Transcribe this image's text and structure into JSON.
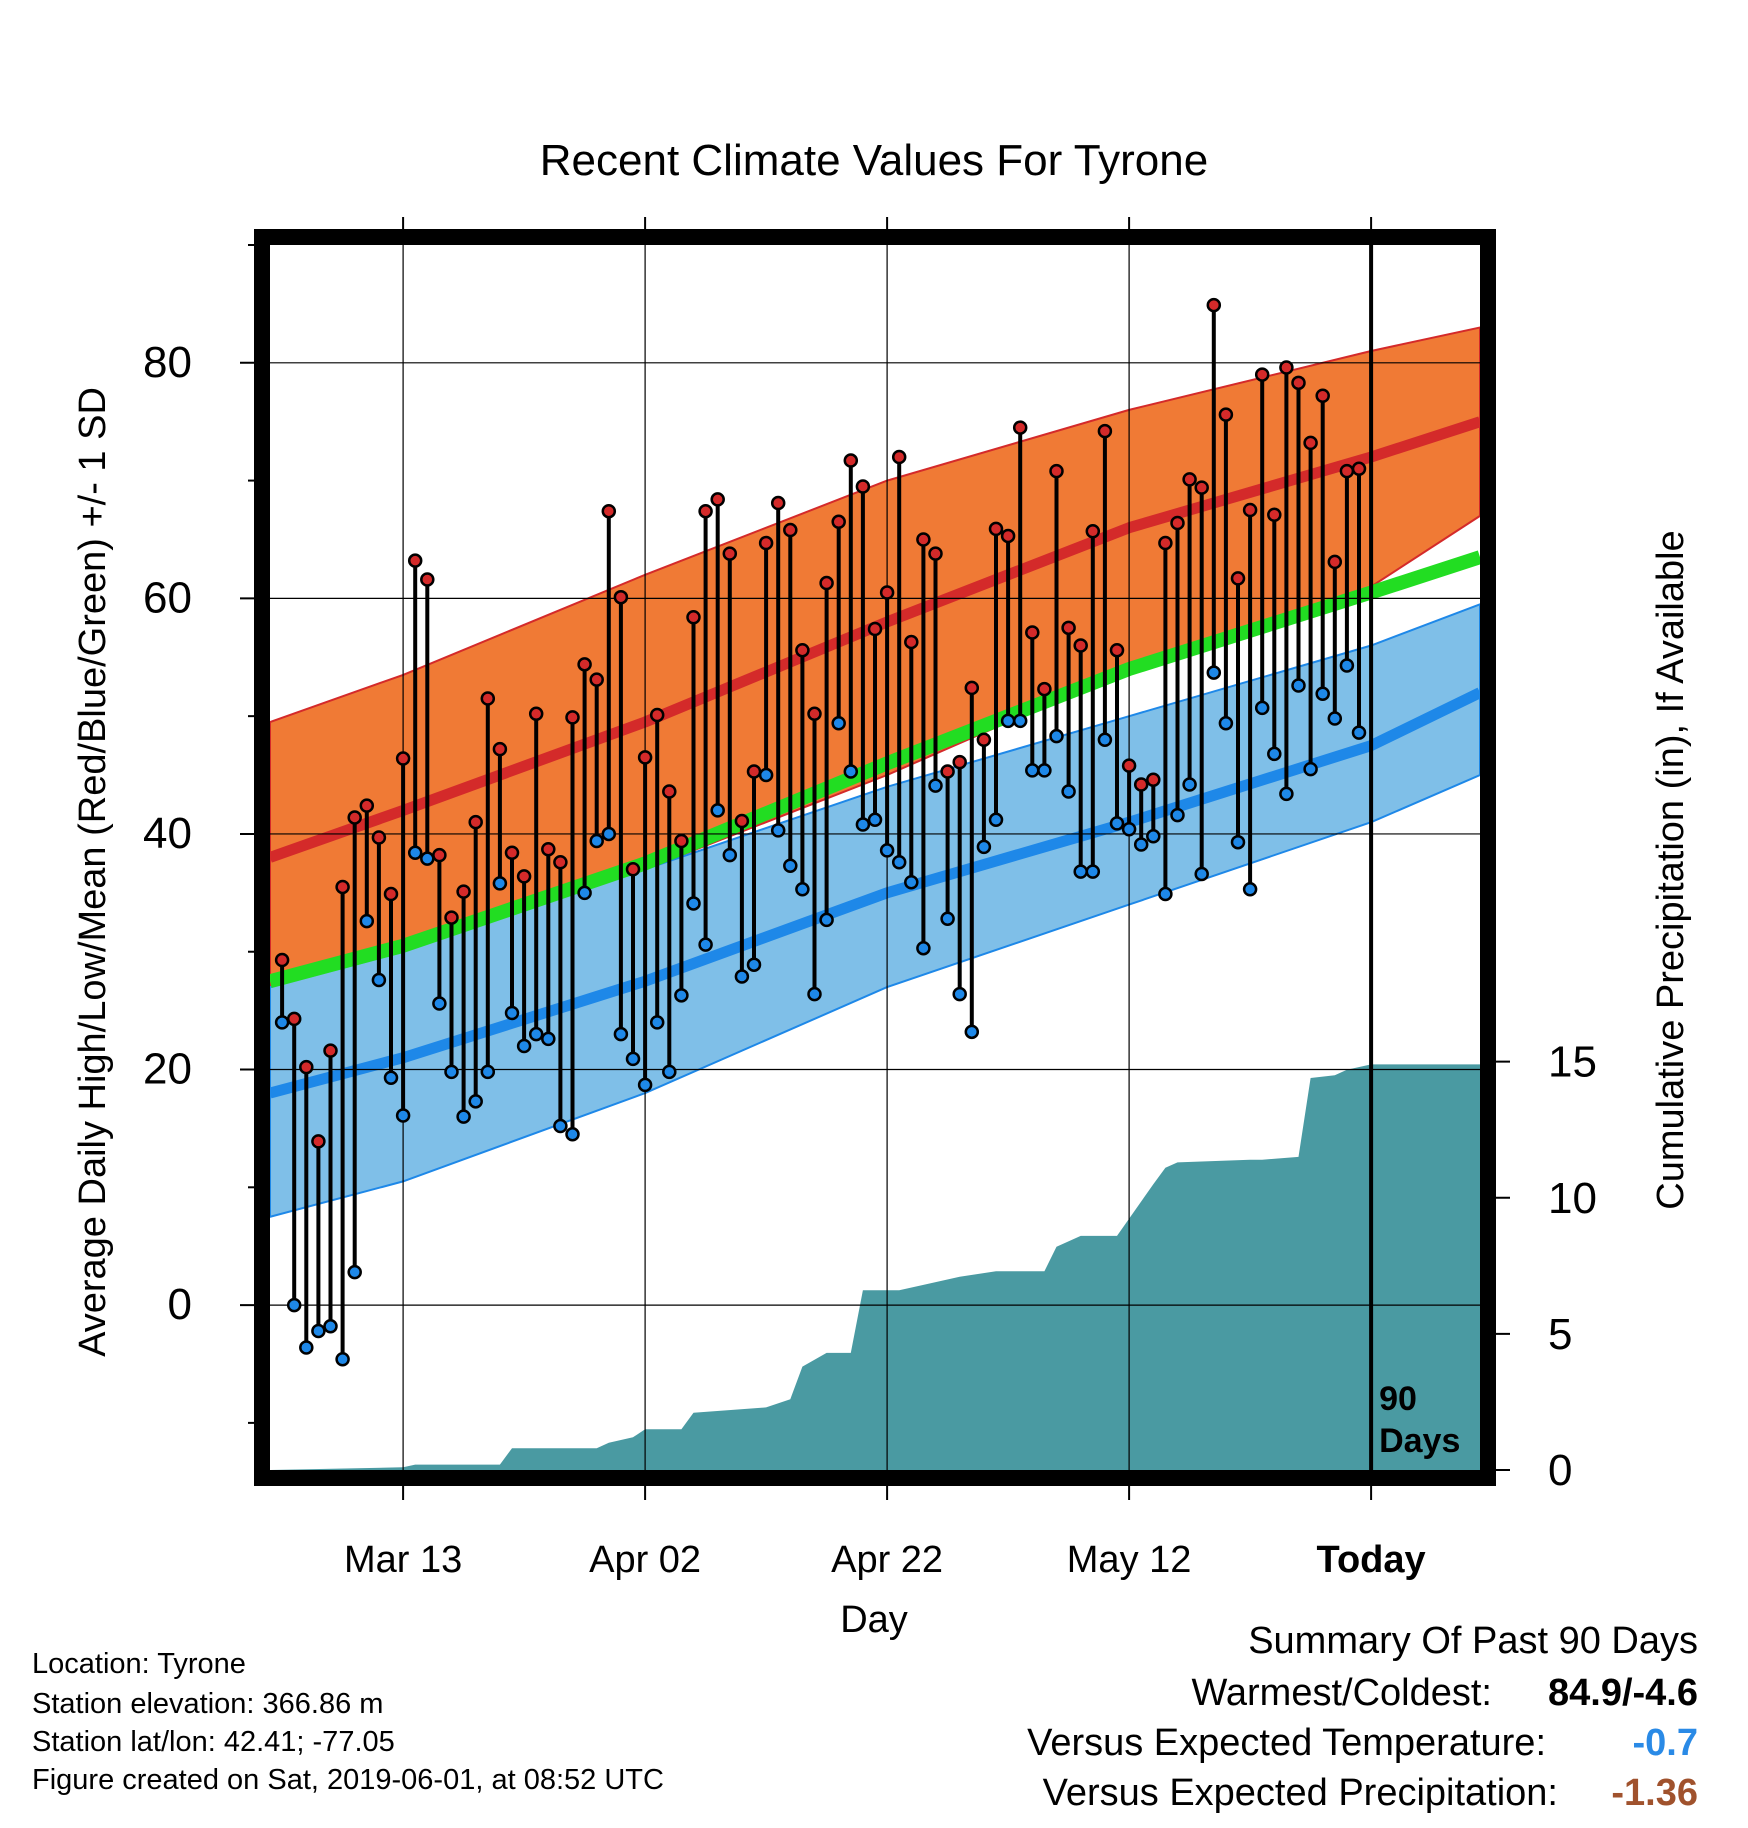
{
  "chart_data": {
    "type": "line",
    "title": "Recent Climate Values For Tyrone",
    "xlabel": "Day",
    "ylabel": "Average Daily High/Low/Mean (Red/Blue/Green) +/- 1 SD",
    "y2label": "Cumulative Precipitation (in), If Available",
    "x_ticks": [
      "Mar 13",
      "Apr 02",
      "Apr 22",
      "May 12",
      "Today"
    ],
    "x_tick_days": [
      10,
      30,
      50,
      70,
      90
    ],
    "xlim": [
      -1,
      99
    ],
    "ylim": [
      -14,
      90
    ],
    "y_ticks": [
      0,
      20,
      40,
      60,
      80
    ],
    "y2lim": [
      0,
      45
    ],
    "y2_ticks": [
      0,
      5,
      10,
      15
    ],
    "today_label": "90\nDays",
    "colors": {
      "high_band": "#f07a35",
      "high_mean": "#d42a2a",
      "low_band": "#7fbfe8",
      "low_mean": "#1e88e8",
      "mean": "#22dd22",
      "precip": "#4a9aa2",
      "high_marker": "#d42a2a",
      "low_marker": "#1e88e8"
    },
    "normals": {
      "days": [
        -1,
        10,
        30,
        50,
        70,
        90,
        99
      ],
      "high_upper": [
        49.5,
        53.5,
        62,
        70,
        76,
        81,
        83
      ],
      "high_mean": [
        38,
        42,
        49.5,
        58,
        66,
        72,
        75
      ],
      "high_lower": [
        27,
        30,
        37,
        45,
        54,
        61,
        67
      ],
      "mean": [
        27.5,
        30.5,
        37.5,
        46,
        54,
        60.5,
        63.5
      ],
      "low_upper": [
        27,
        30,
        37,
        44,
        50,
        56,
        59.5
      ],
      "low_mean": [
        18,
        21,
        27.5,
        35,
        41,
        47.5,
        52
      ],
      "low_lower": [
        7.5,
        10.5,
        18,
        27,
        34,
        41,
        45
      ]
    },
    "series": [
      {
        "name": "High",
        "values": [
          29.3,
          24.3,
          20.2,
          13.9,
          21.6,
          35.5,
          41.4,
          42.4,
          39.7,
          34.9,
          46.4,
          63.2,
          61.6,
          38.2,
          32.9,
          35.1,
          41,
          51.5,
          47.2,
          38.4,
          36.4,
          50.2,
          38.7,
          37.6,
          49.9,
          54.4,
          53.1,
          67.4,
          60.1,
          37,
          46.5,
          50.1,
          43.6,
          39.4,
          58.4,
          67.4,
          68.4,
          63.8,
          41.1,
          45.3,
          64.7,
          68.1,
          65.8,
          55.6,
          50.2,
          61.3,
          66.5,
          71.7,
          69.5,
          57.4,
          60.5,
          72,
          56.3,
          65,
          63.8,
          45.3,
          46.1,
          52.4,
          48,
          65.9,
          65.3,
          74.5,
          57.1,
          52.3,
          70.8,
          57.5,
          56,
          65.7,
          74.2,
          55.6,
          45.8,
          44.2,
          44.6,
          64.7,
          66.4,
          70.1,
          69.4,
          84.9,
          75.6,
          61.7,
          67.5,
          79,
          67.1,
          79.6,
          78.3,
          73.2,
          77.2,
          63.1,
          70.8,
          71
        ]
      },
      {
        "name": "Low",
        "values": [
          24,
          0,
          -3.6,
          -2.2,
          -1.8,
          -4.6,
          2.8,
          32.6,
          27.6,
          19.3,
          16.1,
          38.4,
          37.9,
          25.6,
          19.8,
          16,
          17.3,
          19.8,
          35.8,
          24.8,
          22,
          23,
          22.6,
          15.2,
          14.5,
          35,
          39.4,
          40,
          23,
          20.9,
          18.7,
          24,
          19.8,
          26.3,
          34.1,
          30.6,
          42,
          38.2,
          27.9,
          28.9,
          45,
          40.3,
          37.3,
          35.3,
          26.4,
          32.7,
          49.4,
          45.3,
          40.8,
          41.2,
          38.6,
          37.6,
          35.9,
          30.3,
          44.1,
          32.8,
          26.4,
          23.2,
          38.9,
          41.2,
          49.6,
          49.6,
          45.4,
          45.4,
          48.3,
          43.6,
          36.8,
          36.8,
          48,
          40.9,
          40.4,
          39.1,
          39.8,
          34.9,
          41.6,
          44.2,
          36.6,
          53.7,
          49.4,
          39.3,
          35.3,
          50.7,
          46.8,
          43.4,
          52.6,
          45.5,
          51.9,
          49.8,
          54.3,
          48.6
        ]
      },
      {
        "name": "Cumulative Precipitation",
        "days": [
          -1,
          10,
          11,
          18,
          19,
          26,
          27,
          29,
          30,
          33,
          34,
          40,
          42,
          43,
          45,
          47,
          48,
          50,
          51,
          53,
          56,
          59,
          63,
          64,
          66,
          69,
          72,
          73,
          74,
          80,
          81,
          84,
          85,
          87,
          88,
          90,
          99
        ],
        "values": [
          0,
          0.1,
          0.2,
          0.2,
          0.8,
          0.8,
          1,
          1.2,
          1.5,
          1.5,
          2.1,
          2.3,
          2.6,
          3.8,
          4.3,
          4.3,
          6.6,
          6.6,
          6.6,
          6.8,
          7.1,
          7.3,
          7.3,
          8.2,
          8.6,
          8.6,
          10.5,
          11.1,
          11.3,
          11.4,
          11.4,
          11.5,
          14.4,
          14.5,
          14.7,
          14.9,
          14.9
        ]
      }
    ]
  },
  "info": {
    "location": "Location: Tyrone",
    "elevation": "Station elevation: 366.86 m",
    "latlon": "Station lat/lon: 42.41; -77.05",
    "created": "Figure created on Sat, 2019-06-01, at 08:52 UTC"
  },
  "summary": {
    "title": "Summary Of Past 90 Days",
    "warm_cold_label": "Warmest/Coldest:",
    "warm_cold_value": "84.9/-4.6",
    "temp_label": "Versus Expected Temperature:",
    "temp_value": "-0.7",
    "temp_color": "#2a8ae6",
    "precip_label": "Versus Expected Precipitation:",
    "precip_value": "-1.36",
    "precip_color": "#a0522d"
  }
}
